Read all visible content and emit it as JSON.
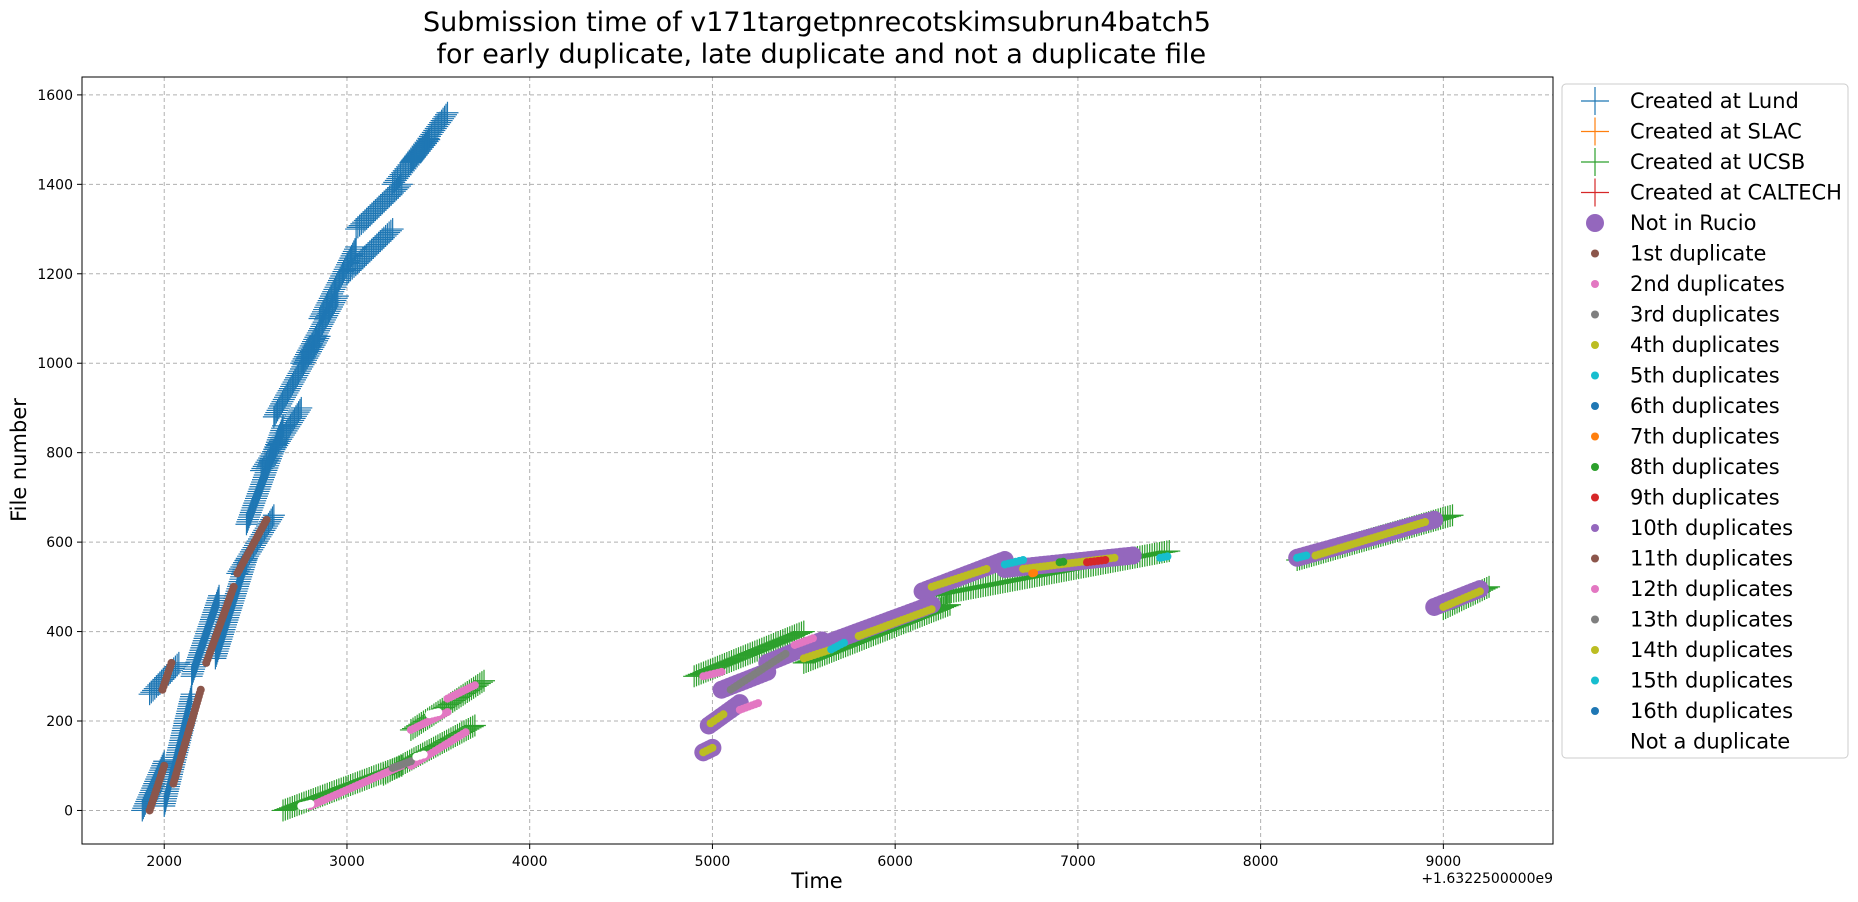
{
  "chart_data": {
    "type": "scatter",
    "title_line1": "Submission time of v171targetpnrecotskimsubrun4batch5",
    "title_line2": " for early duplicate, late duplicate and not a duplicate file",
    "xlabel": "Time",
    "ylabel": "File number",
    "x_offset_label": "+1.6322500000e9",
    "xlim": [
      1550,
      9600
    ],
    "ylim": [
      -75,
      1640
    ],
    "xticks": [
      2000,
      3000,
      4000,
      5000,
      6000,
      7000,
      8000,
      9000
    ],
    "yticks": [
      0,
      200,
      400,
      600,
      800,
      1000,
      1200,
      1400,
      1600
    ],
    "grid": true,
    "legend_position": "outside-right",
    "legend": [
      {
        "label": "Created at Lund",
        "marker": "plus",
        "color": "#1f77b4"
      },
      {
        "label": "Created at SLAC",
        "marker": "plus",
        "color": "#ff7f0e"
      },
      {
        "label": "Created at UCSB",
        "marker": "plus",
        "color": "#2ca02c"
      },
      {
        "label": "Created at CALTECH",
        "marker": "plus",
        "color": "#d62728"
      },
      {
        "label": "Not in Rucio",
        "marker": "big-dot",
        "color": "#9467bd"
      },
      {
        "label": "1st duplicate",
        "marker": "dot",
        "color": "#8c564b"
      },
      {
        "label": "2nd duplicates",
        "marker": "dot",
        "color": "#e377c2"
      },
      {
        "label": "3rd duplicates",
        "marker": "dot",
        "color": "#7f7f7f"
      },
      {
        "label": "4th duplicates",
        "marker": "dot",
        "color": "#bcbd22"
      },
      {
        "label": "5th duplicates",
        "marker": "dot",
        "color": "#17becf"
      },
      {
        "label": "6th duplicates",
        "marker": "dot",
        "color": "#1f77b4"
      },
      {
        "label": "7th duplicates",
        "marker": "dot",
        "color": "#ff7f0e"
      },
      {
        "label": "8th duplicates",
        "marker": "dot",
        "color": "#2ca02c"
      },
      {
        "label": "9th duplicates",
        "marker": "dot",
        "color": "#d62728"
      },
      {
        "label": "10th duplicates",
        "marker": "dot",
        "color": "#9467bd"
      },
      {
        "label": "11th duplicates",
        "marker": "dot",
        "color": "#8c564b"
      },
      {
        "label": "12th duplicates",
        "marker": "dot",
        "color": "#e377c2"
      },
      {
        "label": "13th duplicates",
        "marker": "dot",
        "color": "#7f7f7f"
      },
      {
        "label": "14th duplicates",
        "marker": "dot",
        "color": "#bcbd22"
      },
      {
        "label": "15th duplicates",
        "marker": "dot",
        "color": "#17becf"
      },
      {
        "label": "16th duplicates",
        "marker": "dot",
        "color": "#1f77b4"
      },
      {
        "label": "Not a duplicate",
        "marker": "white-dot",
        "color": "#ffffff"
      }
    ],
    "series": [
      {
        "name": "Created at Lund",
        "marker": "plus",
        "color": "#1f77b4",
        "segments": [
          {
            "x": [
              1880,
              2000
            ],
            "y": [
              0,
              110
            ]
          },
          {
            "x": [
              1920,
              2080
            ],
            "y": [
              260,
              330
            ]
          },
          {
            "x": [
              2000,
              2150
            ],
            "y": [
              10,
              260
            ]
          },
          {
            "x": [
              2150,
              2300
            ],
            "y": [
              300,
              480
            ]
          },
          {
            "x": [
              2280,
              2450
            ],
            "y": [
              340,
              560
            ]
          },
          {
            "x": [
              2400,
              2600
            ],
            "y": [
              530,
              660
            ]
          },
          {
            "x": [
              2450,
              2650
            ],
            "y": [
              640,
              860
            ]
          },
          {
            "x": [
              2530,
              2750
            ],
            "y": [
              760,
              900
            ]
          },
          {
            "x": [
              2600,
              2850
            ],
            "y": [
              880,
              1060
            ]
          },
          {
            "x": [
              2750,
              2950
            ],
            "y": [
              1000,
              1150
            ]
          },
          {
            "x": [
              2850,
              3050
            ],
            "y": [
              1100,
              1260
            ]
          },
          {
            "x": [
              3000,
              3250
            ],
            "y": [
              1200,
              1300
            ]
          },
          {
            "x": [
              3050,
              3300
            ],
            "y": [
              1300,
              1400
            ]
          },
          {
            "x": [
              3250,
              3450
            ],
            "y": [
              1400,
              1500
            ]
          },
          {
            "x": [
              3350,
              3550
            ],
            "y": [
              1450,
              1560
            ]
          }
        ]
      },
      {
        "name": "Created at UCSB",
        "marker": "plus",
        "color": "#2ca02c",
        "segments": [
          {
            "x": [
              2650,
              3300
            ],
            "y": [
              0,
              100
            ]
          },
          {
            "x": [
              3200,
              3700
            ],
            "y": [
              80,
              190
            ]
          },
          {
            "x": [
              3350,
              3750
            ],
            "y": [
              180,
              290
            ]
          },
          {
            "x": [
              4900,
              5500
            ],
            "y": [
              300,
              400
            ]
          },
          {
            "x": [
              5500,
              6300
            ],
            "y": [
              330,
              460
            ]
          },
          {
            "x": [
              6200,
              7500
            ],
            "y": [
              480,
              580
            ]
          },
          {
            "x": [
              8200,
              9050
            ],
            "y": [
              560,
              660
            ]
          },
          {
            "x": [
              9000,
              9250
            ],
            "y": [
              450,
              500
            ]
          }
        ]
      },
      {
        "name": "Not in Rucio",
        "marker": "big-dot",
        "color": "#9467bd",
        "segments": [
          {
            "x": [
              4950,
              5000
            ],
            "y": [
              130,
              140
            ]
          },
          {
            "x": [
              4980,
              5150
            ],
            "y": [
              190,
              240
            ]
          },
          {
            "x": [
              5050,
              5300
            ],
            "y": [
              270,
              310
            ]
          },
          {
            "x": [
              5300,
              5600
            ],
            "y": [
              330,
              380
            ]
          },
          {
            "x": [
              5600,
              6200
            ],
            "y": [
              370,
              460
            ]
          },
          {
            "x": [
              6150,
              6600
            ],
            "y": [
              490,
              560
            ]
          },
          {
            "x": [
              6600,
              7300
            ],
            "y": [
              540,
              570
            ]
          },
          {
            "x": [
              8200,
              8950
            ],
            "y": [
              565,
              650
            ]
          },
          {
            "x": [
              8950,
              9200
            ],
            "y": [
              455,
              495
            ]
          }
        ]
      },
      {
        "name": "1st duplicate",
        "marker": "dot",
        "color": "#8c564b",
        "segments": [
          {
            "x": [
              1920,
              2000
            ],
            "y": [
              0,
              100
            ]
          },
          {
            "x": [
              1990,
              2040
            ],
            "y": [
              270,
              330
            ]
          },
          {
            "x": [
              2050,
              2200
            ],
            "y": [
              60,
              270
            ]
          },
          {
            "x": [
              2230,
              2380
            ],
            "y": [
              330,
              500
            ]
          },
          {
            "x": [
              2400,
              2560
            ],
            "y": [
              530,
              650
            ]
          }
        ]
      },
      {
        "name": "2nd duplicates",
        "marker": "dot",
        "color": "#e377c2",
        "segments": [
          {
            "x": [
              2800,
              3300
            ],
            "y": [
              10,
              100
            ]
          },
          {
            "x": [
              3350,
              3550
            ],
            "y": [
              180,
              220
            ]
          },
          {
            "x": [
              3350,
              3650
            ],
            "y": [
              100,
              175
            ]
          },
          {
            "x": [
              3550,
              3700
            ],
            "y": [
              250,
              280
            ]
          },
          {
            "x": [
              4950,
              5050
            ],
            "y": [
              300,
              310
            ]
          },
          {
            "x": [
              5150,
              5250
            ],
            "y": [
              225,
              240
            ]
          },
          {
            "x": [
              5450,
              5550
            ],
            "y": [
              370,
              385
            ]
          }
        ]
      },
      {
        "name": "3rd duplicates",
        "marker": "dot",
        "color": "#7f7f7f",
        "segments": [
          {
            "x": [
              3250,
              3350
            ],
            "y": [
              95,
              110
            ]
          },
          {
            "x": [
              5100,
              5400
            ],
            "y": [
              270,
              350
            ]
          }
        ]
      },
      {
        "name": "4th duplicates",
        "marker": "dot",
        "color": "#bcbd22",
        "segments": [
          {
            "x": [
              4950,
              5000
            ],
            "y": [
              130,
              140
            ]
          },
          {
            "x": [
              4990,
              5060
            ],
            "y": [
              195,
              215
            ]
          },
          {
            "x": [
              5500,
              5650
            ],
            "y": [
              340,
              360
            ]
          },
          {
            "x": [
              5800,
              6200
            ],
            "y": [
              390,
              450
            ]
          },
          {
            "x": [
              6200,
              6500
            ],
            "y": [
              500,
              540
            ]
          },
          {
            "x": [
              6700,
              7200
            ],
            "y": [
              540,
              565
            ]
          },
          {
            "x": [
              8300,
              8900
            ],
            "y": [
              570,
              645
            ]
          },
          {
            "x": [
              9000,
              9200
            ],
            "y": [
              455,
              490
            ]
          }
        ]
      },
      {
        "name": "5th duplicates",
        "marker": "dot",
        "color": "#17becf",
        "segments": [
          {
            "x": [
              5650,
              5720
            ],
            "y": [
              360,
              375
            ]
          },
          {
            "x": [
              6600,
              6700
            ],
            "y": [
              550,
              560
            ]
          },
          {
            "x": [
              7450,
              7490
            ],
            "y": [
              565,
              568
            ]
          },
          {
            "x": [
              8200,
              8250
            ],
            "y": [
              565,
              570
            ]
          }
        ]
      },
      {
        "name": "7th duplicates",
        "marker": "dot",
        "color": "#ff7f0e",
        "segments": [
          {
            "x": [
              6750,
              6760
            ],
            "y": [
              530,
              531
            ]
          }
        ]
      },
      {
        "name": "8th duplicates",
        "marker": "dot",
        "color": "#2ca02c",
        "segments": [
          {
            "x": [
              6900,
              6920
            ],
            "y": [
              555,
              556
            ]
          }
        ]
      },
      {
        "name": "9th duplicates",
        "marker": "dot",
        "color": "#d62728",
        "segments": [
          {
            "x": [
              7050,
              7150
            ],
            "y": [
              555,
              560
            ]
          }
        ]
      },
      {
        "name": "Not a duplicate",
        "marker": "white-dot",
        "color": "#ffffff",
        "segments": [
          {
            "x": [
              2750,
              2800
            ],
            "y": [
              10,
              15
            ]
          },
          {
            "x": [
              3380,
              3420
            ],
            "y": [
              120,
              125
            ]
          },
          {
            "x": [
              3450,
              3500
            ],
            "y": [
              215,
              220
            ]
          }
        ]
      }
    ]
  }
}
